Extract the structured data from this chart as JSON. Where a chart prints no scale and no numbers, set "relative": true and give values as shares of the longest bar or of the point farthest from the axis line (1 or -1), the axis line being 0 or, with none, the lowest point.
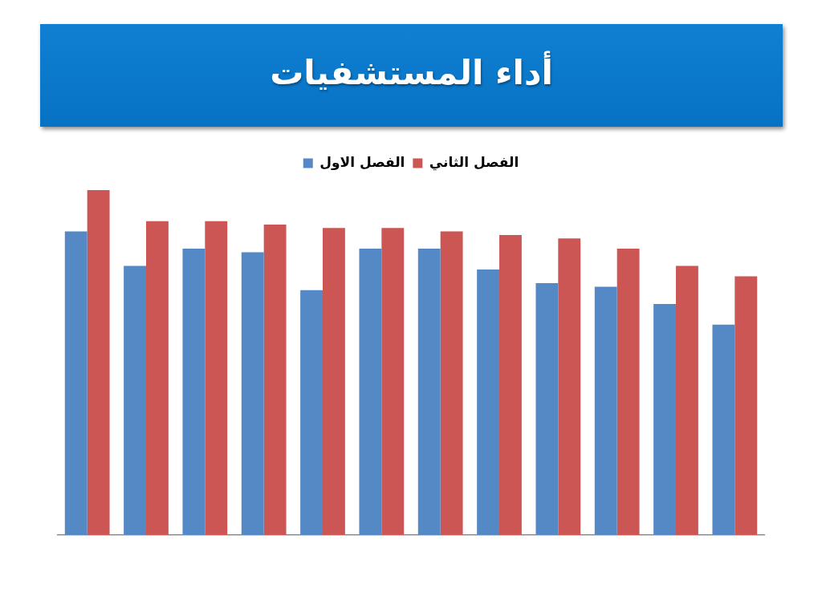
{
  "chart_data": {
    "type": "bar",
    "title": "أداء المستشفيات",
    "categories": [
      null,
      null,
      null,
      null,
      null,
      null,
      null,
      null,
      null,
      null,
      null,
      null
    ],
    "relative": true,
    "legend": "top",
    "series": [
      {
        "name": "الفصل الاول",
        "color": "#5589c6",
        "values": [
          0.88,
          0.78,
          0.83,
          0.82,
          0.71,
          0.83,
          0.83,
          0.77,
          0.73,
          0.72,
          0.67,
          0.61
        ]
      },
      {
        "name": "الفصل الثاني",
        "color": "#cb5653",
        "values": [
          1,
          0.91,
          0.91,
          0.9,
          0.89,
          0.89,
          0.88,
          0.87,
          0.86,
          0.83,
          0.78,
          0.75
        ]
      }
    ]
  }
}
